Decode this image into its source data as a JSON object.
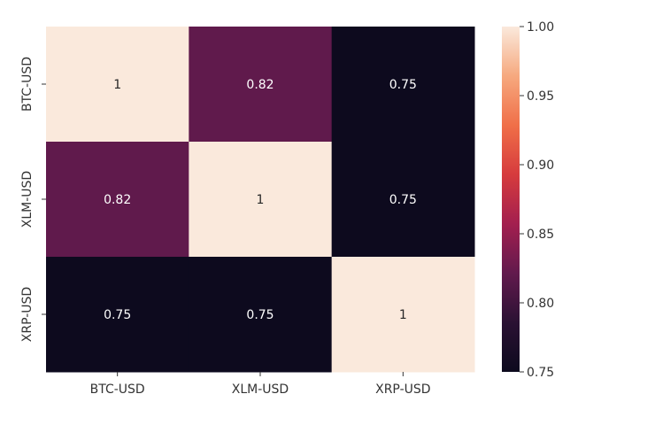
{
  "chart_data": {
    "type": "heatmap",
    "x_labels": [
      "BTC-USD",
      "XLM-USD",
      "XRP-USD"
    ],
    "y_labels": [
      "BTC-USD",
      "XLM-USD",
      "XRP-USD"
    ],
    "values": [
      [
        1.0,
        0.82,
        0.75
      ],
      [
        0.82,
        1.0,
        0.75
      ],
      [
        0.75,
        0.75,
        1.0
      ]
    ],
    "annotations": [
      [
        "1",
        "0.82",
        "0.75"
      ],
      [
        "0.82",
        "1",
        "0.75"
      ],
      [
        "0.75",
        "0.75",
        "1"
      ]
    ],
    "colorbar": {
      "range": [
        0.75,
        1.0
      ],
      "ticks": [
        "1.00",
        "0.95",
        "0.90",
        "0.85",
        "0.80",
        "0.75"
      ],
      "colors": [
        "#0d0a1e",
        "#2a1133",
        "#621a4d",
        "#a31f4f",
        "#d63b3d",
        "#f06f48",
        "#f6a97f",
        "#fae9dc"
      ]
    },
    "title": "",
    "xlabel": "",
    "ylabel": ""
  }
}
